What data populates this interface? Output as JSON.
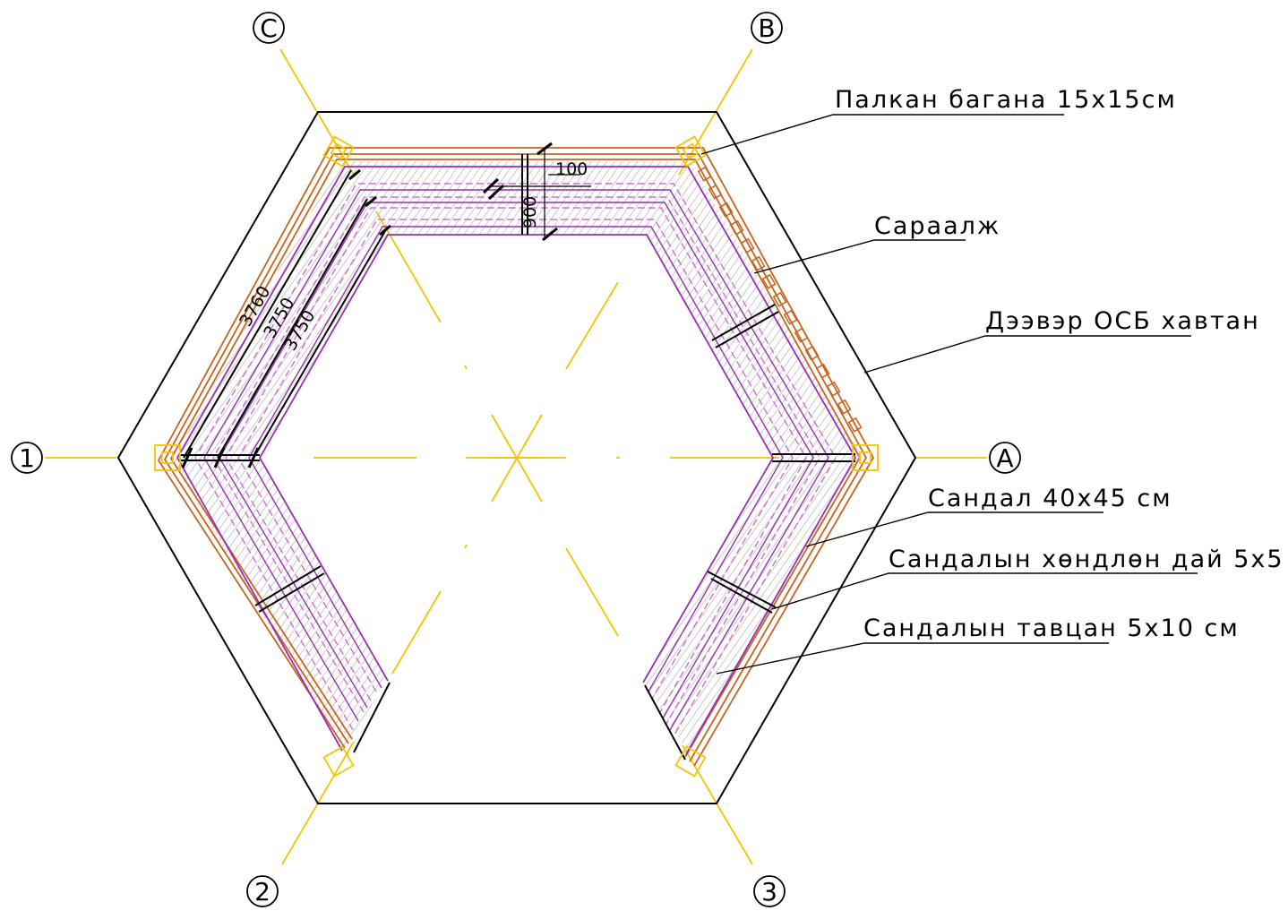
{
  "colors": {
    "axis": "#f5c400",
    "orange": "#c8641e",
    "purple": "#9a2fb5",
    "hatch": "#b9b9b9",
    "outline": "#000000",
    "pink": "#d06fd0"
  },
  "axes": {
    "A": "A",
    "B": "B",
    "C": "C",
    "one": "1",
    "two": "2",
    "three": "3"
  },
  "labels": {
    "post": "Палкан багана 15х15см",
    "railing": "Сараалж",
    "roof": "Дээвэр ОСБ хавтан",
    "bench": "Сандал 40х45 см",
    "bench_support": "Сандалын хөндлөн дай 5х5 см",
    "bench_board": "Сандалын тавцан 5х10 см"
  },
  "dimensions": {
    "d100": "100",
    "d900": "900",
    "d3760": "3760",
    "d3750a": "3750",
    "d3750b": "3750"
  }
}
